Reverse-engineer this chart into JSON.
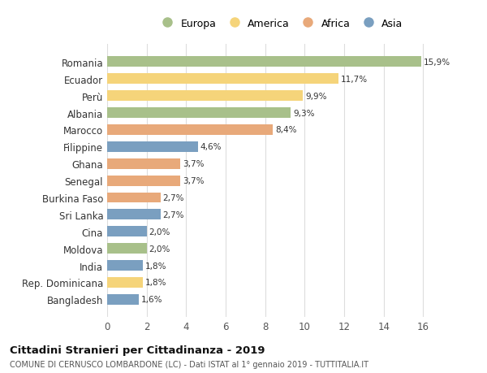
{
  "countries": [
    "Bangladesh",
    "Rep. Dominicana",
    "India",
    "Moldova",
    "Cina",
    "Sri Lanka",
    "Burkina Faso",
    "Senegal",
    "Ghana",
    "Filippine",
    "Marocco",
    "Albania",
    "Perù",
    "Ecuador",
    "Romania"
  ],
  "values": [
    1.6,
    1.8,
    1.8,
    2.0,
    2.0,
    2.7,
    2.7,
    3.7,
    3.7,
    4.6,
    8.4,
    9.3,
    9.9,
    11.7,
    15.9
  ],
  "labels": [
    "1,6%",
    "1,8%",
    "1,8%",
    "2,0%",
    "2,0%",
    "2,7%",
    "2,7%",
    "3,7%",
    "3,7%",
    "4,6%",
    "8,4%",
    "9,3%",
    "9,9%",
    "11,7%",
    "15,9%"
  ],
  "continents": [
    "Asia",
    "America",
    "Asia",
    "Europa",
    "Asia",
    "Asia",
    "Africa",
    "Africa",
    "Africa",
    "Asia",
    "Africa",
    "Europa",
    "America",
    "America",
    "Europa"
  ],
  "colors": {
    "Europa": "#a8c08a",
    "America": "#f5d47a",
    "Africa": "#e8a97a",
    "Asia": "#7a9fc0"
  },
  "legend_labels": [
    "Europa",
    "America",
    "Africa",
    "Asia"
  ],
  "legend_colors": [
    "#a8c08a",
    "#f5d47a",
    "#e8a97a",
    "#7a9fc0"
  ],
  "title": "Cittadini Stranieri per Cittadinanza - 2019",
  "subtitle": "COMUNE DI CERNUSCO LOMBARDONE (LC) - Dati ISTAT al 1° gennaio 2019 - TUTTITALIA.IT",
  "xlim": [
    0,
    17.5
  ],
  "xticks": [
    0,
    2,
    4,
    6,
    8,
    10,
    12,
    14,
    16
  ],
  "background_color": "#ffffff",
  "grid_color": "#dddddd"
}
